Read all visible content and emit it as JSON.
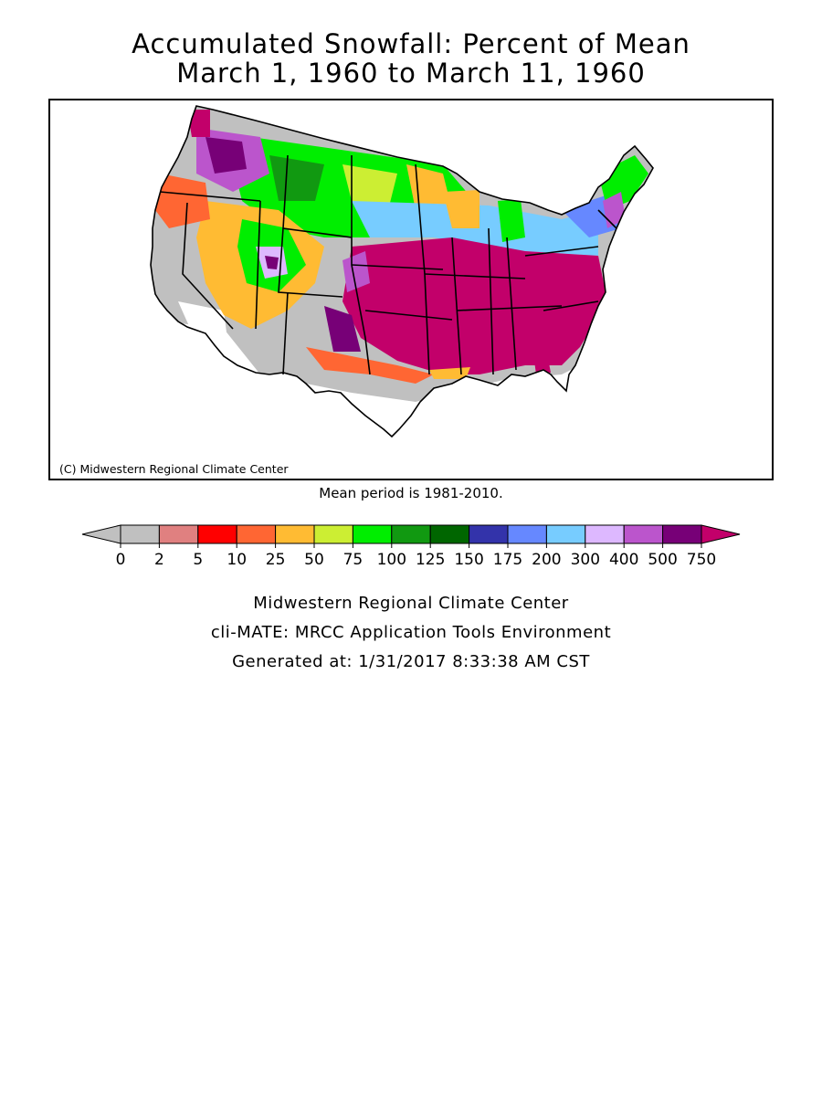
{
  "title_line1": "Accumulated Snowfall: Percent of Mean",
  "title_line2": "March 1, 1960 to March 11, 1960",
  "map": {
    "copyright": "(C) Midwestern Regional Climate Center",
    "region": "Contiguous United States",
    "variable": "Accumulated snowfall percent of mean"
  },
  "mean_note": "Mean period is 1981-2010.",
  "legend": {
    "below_color": "#c0c0c0",
    "above_color": "#c2006a",
    "bins": [
      {
        "from": "0",
        "color": "#c0c0c0"
      },
      {
        "from": "2",
        "color": "#e08080"
      },
      {
        "from": "5",
        "color": "#ff0000"
      },
      {
        "from": "10",
        "color": "#ff6633"
      },
      {
        "from": "25",
        "color": "#ffbb33"
      },
      {
        "from": "50",
        "color": "#ccee33"
      },
      {
        "from": "75",
        "color": "#00ee00"
      },
      {
        "from": "100",
        "color": "#119911"
      },
      {
        "from": "125",
        "color": "#006600"
      },
      {
        "from": "150",
        "color": "#3333aa"
      },
      {
        "from": "175",
        "color": "#6688ff"
      },
      {
        "from": "200",
        "color": "#77ccff"
      },
      {
        "from": "300",
        "color": "#ddb8ff"
      },
      {
        "from": "400",
        "color": "#bb55cc"
      },
      {
        "from": "500",
        "color": "#770077"
      }
    ],
    "last_label": "750"
  },
  "footer": {
    "line1": "Midwestern Regional Climate Center",
    "line2": "cli-MATE: MRCC Application Tools Environment",
    "line3": "Generated at: 1/31/2017 8:33:38 AM CST"
  }
}
